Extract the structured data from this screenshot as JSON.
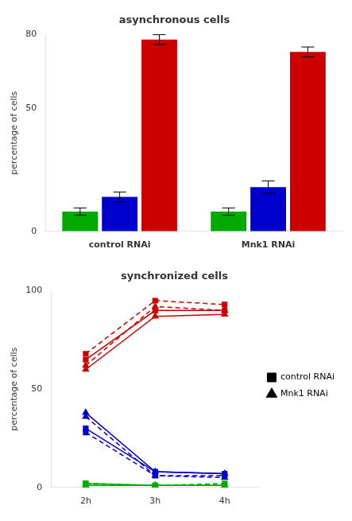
{
  "chart_data": [
    {
      "type": "bar",
      "title": "asynchronous cells",
      "ylabel": "percentage of cells",
      "categories": [
        "control RNAi",
        "Mnk1 RNAi"
      ],
      "series": [
        {
          "color": "#00aa00",
          "values": [
            8,
            8
          ],
          "errors": [
            1.5,
            1.5
          ]
        },
        {
          "color": "#0000cc",
          "values": [
            14,
            18
          ],
          "errors": [
            2.0,
            2.5
          ]
        },
        {
          "color": "#cc0000",
          "values": [
            78,
            73
          ],
          "errors": [
            2.0,
            2.0
          ]
        }
      ],
      "ylim": [
        0,
        80
      ],
      "yticks": [
        0,
        50,
        80
      ],
      "grid": false
    },
    {
      "type": "line",
      "title": "synchronized cells",
      "ylabel": "percentage of cells",
      "categories": [
        "2h",
        "3h",
        "4h"
      ],
      "series": [
        {
          "name": "control RNAi",
          "color": "#cc0000",
          "marker": "square",
          "line_style": "solid",
          "values": [
            65,
            90,
            90
          ]
        },
        {
          "name": "control RNAi",
          "color": "#cc0000",
          "marker": "square",
          "line_style": "dashed",
          "values": [
            68,
            95,
            93
          ]
        },
        {
          "name": "Mnk1 RNAi",
          "color": "#cc0000",
          "marker": "triangle",
          "line_style": "solid",
          "values": [
            60,
            87,
            88
          ]
        },
        {
          "name": "Mnk1 RNAi",
          "color": "#cc0000",
          "marker": "triangle",
          "line_style": "dashed",
          "values": [
            62,
            92,
            90
          ]
        },
        {
          "name": "control RNAi",
          "color": "#0000cc",
          "marker": "square",
          "line_style": "solid",
          "values": [
            30,
            8,
            7
          ]
        },
        {
          "name": "control RNAi",
          "color": "#0000cc",
          "marker": "square",
          "line_style": "dashed",
          "values": [
            28,
            6,
            6
          ]
        },
        {
          "name": "Mnk1 RNAi",
          "color": "#0000cc",
          "marker": "triangle",
          "line_style": "solid",
          "values": [
            38,
            8,
            7
          ]
        },
        {
          "name": "Mnk1 RNAi",
          "color": "#0000cc",
          "marker": "triangle",
          "line_style": "dashed",
          "values": [
            36,
            6,
            5
          ]
        },
        {
          "name": "control RNAi",
          "color": "#00aa00",
          "marker": "square",
          "line_style": "solid",
          "values": [
            2,
            1,
            1
          ]
        },
        {
          "name": "control RNAi",
          "color": "#00aa00",
          "marker": "square",
          "line_style": "dashed",
          "values": [
            2,
            1,
            2
          ]
        },
        {
          "name": "Mnk1 RNAi",
          "color": "#00aa00",
          "marker": "triangle",
          "line_style": "solid",
          "values": [
            1,
            1,
            1
          ]
        },
        {
          "name": "Mnk1 RNAi",
          "color": "#00aa00",
          "marker": "triangle",
          "line_style": "dashed",
          "values": [
            1,
            1,
            1
          ]
        }
      ],
      "ylim": [
        0,
        100
      ],
      "yticks": [
        0,
        50,
        100
      ],
      "grid": false,
      "legend": "right"
    }
  ]
}
